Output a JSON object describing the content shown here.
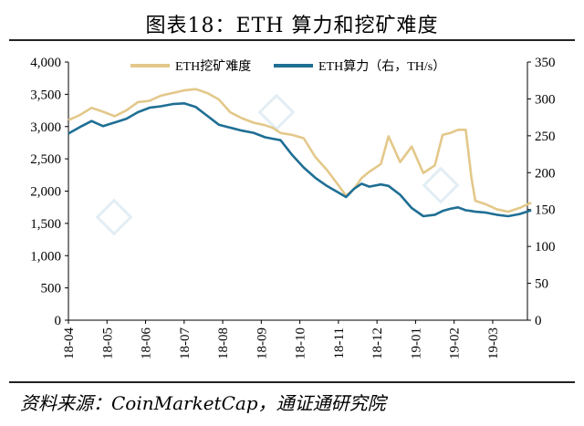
{
  "title": "图表18：ETH 算力和挖矿难度",
  "source": "资料来源：CoinMarketCap，通证通研究院",
  "chart_data": {
    "type": "line",
    "x_ticks": [
      "18-04",
      "18-05",
      "18-06",
      "18-07",
      "18-08",
      "18-09",
      "18-10",
      "18-11",
      "18-12",
      "19-01",
      "19-02",
      "19-03"
    ],
    "y_left": {
      "ylim": [
        0,
        4000
      ],
      "ticks": [
        "0",
        "500",
        "1,000",
        "1,500",
        "2,000",
        "2,500",
        "3,000",
        "3,500",
        "4,000"
      ]
    },
    "y_right": {
      "ylim": [
        0,
        350
      ],
      "ticks": [
        "0",
        "50",
        "100",
        "150",
        "200",
        "250",
        "300",
        "350"
      ]
    },
    "legend_position": "top-center",
    "grid": false,
    "series": [
      {
        "name": "ETH挖矿难度",
        "axis": "left",
        "color": "#e3c88a",
        "x": [
          0,
          0.3,
          0.6,
          0.9,
          1.2,
          1.5,
          1.8,
          2.1,
          2.4,
          2.7,
          3.0,
          3.3,
          3.6,
          3.9,
          4.2,
          4.5,
          4.8,
          5.1,
          5.3,
          5.5,
          5.8,
          6.1,
          6.4,
          6.7,
          7.0,
          7.2,
          7.4,
          7.6,
          7.8,
          8.1,
          8.3,
          8.6,
          8.9,
          9.2,
          9.5,
          9.7,
          9.9,
          10.1,
          10.3,
          10.45,
          10.55,
          10.8,
          11.1,
          11.4,
          11.7,
          12.0
        ],
        "values": [
          3100,
          3180,
          3290,
          3230,
          3160,
          3250,
          3380,
          3400,
          3480,
          3520,
          3560,
          3580,
          3520,
          3420,
          3220,
          3130,
          3060,
          3020,
          2980,
          2900,
          2870,
          2820,
          2530,
          2330,
          2090,
          1930,
          2030,
          2200,
          2300,
          2420,
          2850,
          2450,
          2690,
          2280,
          2400,
          2870,
          2900,
          2950,
          2950,
          2200,
          1850,
          1800,
          1720,
          1680,
          1740,
          1820
        ]
      },
      {
        "name": "ETH算力（右，TH/s）",
        "axis": "right",
        "color": "#1f6f94",
        "x": [
          0,
          0.3,
          0.6,
          0.9,
          1.2,
          1.5,
          1.8,
          2.1,
          2.4,
          2.7,
          3.0,
          3.3,
          3.6,
          3.9,
          4.2,
          4.5,
          4.8,
          5.1,
          5.3,
          5.5,
          5.8,
          6.1,
          6.4,
          6.7,
          7.0,
          7.2,
          7.4,
          7.6,
          7.8,
          8.1,
          8.3,
          8.6,
          8.9,
          9.2,
          9.5,
          9.7,
          9.9,
          10.1,
          10.3,
          10.45,
          10.55,
          10.8,
          11.1,
          11.4,
          11.7,
          12.0
        ],
        "values": [
          253,
          262,
          270,
          263,
          268,
          273,
          282,
          288,
          290,
          293,
          294,
          289,
          277,
          265,
          261,
          257,
          254,
          248,
          246,
          244,
          224,
          207,
          193,
          182,
          173,
          167,
          178,
          185,
          181,
          184,
          182,
          170,
          152,
          141,
          143,
          148,
          151,
          153,
          149,
          148,
          147,
          146,
          143,
          141,
          144,
          149
        ]
      }
    ]
  }
}
